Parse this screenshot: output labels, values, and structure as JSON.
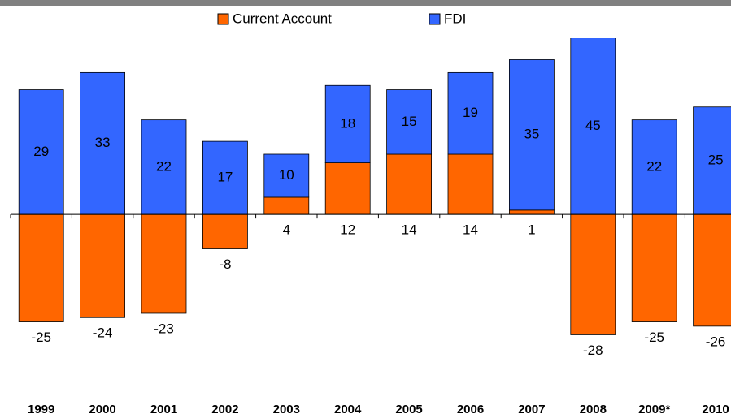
{
  "chart_data": {
    "type": "stacked_bar",
    "categories": [
      "1999",
      "2000",
      "2001",
      "2002",
      "2003",
      "2004",
      "2005",
      "2006",
      "2007",
      "2008",
      "2009*",
      "2010"
    ],
    "series": [
      {
        "name": "Current Account",
        "color": "#ff6600",
        "values": [
          -25,
          -24,
          -23,
          -8,
          4,
          12,
          14,
          14,
          1,
          -28,
          -25,
          -26
        ]
      },
      {
        "name": "FDI",
        "color": "#3366ff",
        "values": [
          29,
          33,
          22,
          17,
          10,
          18,
          15,
          19,
          35,
          45,
          22,
          25
        ]
      }
    ],
    "ylim": [
      -40,
      41
    ],
    "legend": "top"
  }
}
